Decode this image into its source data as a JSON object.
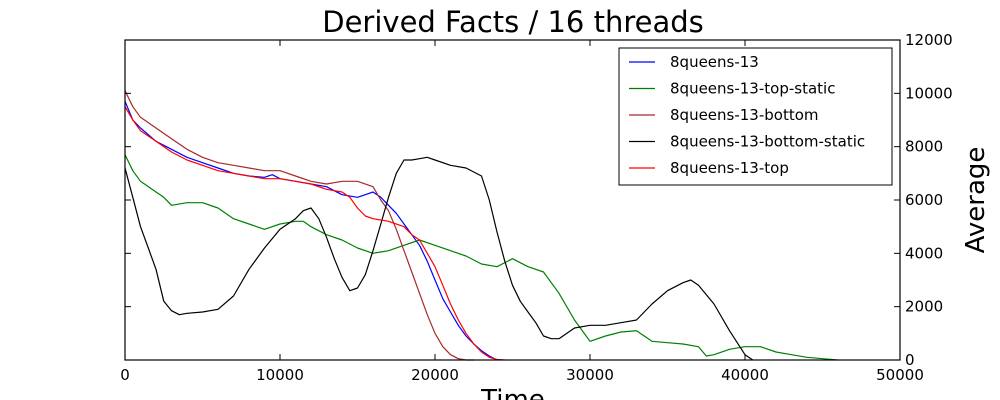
{
  "chart_data": {
    "type": "line",
    "title": "Derived Facts / 16 threads",
    "xlabel": "Time",
    "ylabel": "Average",
    "xlim": [
      0,
      50000
    ],
    "ylim": [
      0,
      12000
    ],
    "xticks": [
      0,
      10000,
      20000,
      30000,
      40000,
      50000
    ],
    "yticks": [
      0,
      2000,
      4000,
      6000,
      8000,
      10000,
      12000
    ],
    "y_axis_side": "right",
    "grid": false,
    "legend_position": "top-right",
    "series": [
      {
        "name": "8queens-13",
        "color": "#0000ff",
        "x": [
          0,
          500,
          1000,
          2000,
          3000,
          4000,
          5000,
          6000,
          7000,
          8000,
          9000,
          9500,
          10000,
          11000,
          12000,
          13000,
          14000,
          15000,
          15500,
          16000,
          16500,
          17000,
          17500,
          18000,
          18500,
          19000,
          19500,
          20000,
          20500,
          21000,
          21500,
          22000,
          22500,
          23000,
          23500,
          24000
        ],
        "y": [
          9700,
          9000,
          8700,
          8200,
          7900,
          7600,
          7400,
          7200,
          7000,
          6900,
          6850,
          6950,
          6800,
          6700,
          6600,
          6500,
          6200,
          6100,
          6200,
          6300,
          6100,
          5800,
          5500,
          5100,
          4700,
          4300,
          3700,
          3000,
          2300,
          1800,
          1300,
          900,
          600,
          350,
          150,
          0
        ]
      },
      {
        "name": "8queens-13-top-static",
        "color": "#008000",
        "x": [
          0,
          500,
          1000,
          2000,
          2500,
          3000,
          4000,
          5000,
          6000,
          7000,
          8000,
          9000,
          10000,
          11000,
          11500,
          12000,
          13000,
          14000,
          15000,
          16000,
          17000,
          18000,
          19000,
          20000,
          21000,
          22000,
          23000,
          24000,
          25000,
          26000,
          27000,
          28000,
          29000,
          30000,
          31000,
          32000,
          33000,
          34000,
          35000,
          36000,
          37000,
          37500,
          38000,
          39000,
          40000,
          41000,
          42000,
          43000,
          44000,
          45000,
          46000
        ],
        "y": [
          7700,
          7100,
          6700,
          6300,
          6100,
          5800,
          5900,
          5900,
          5700,
          5300,
          5100,
          4900,
          5100,
          5200,
          5200,
          5000,
          4700,
          4500,
          4200,
          4000,
          4100,
          4300,
          4500,
          4300,
          4100,
          3900,
          3600,
          3500,
          3800,
          3500,
          3300,
          2500,
          1500,
          700,
          900,
          1050,
          1100,
          700,
          650,
          600,
          500,
          150,
          200,
          400,
          500,
          500,
          300,
          200,
          100,
          50,
          0
        ]
      },
      {
        "name": "8queens-13-bottom",
        "color": "#a52a2a",
        "x": [
          0,
          500,
          1000,
          2000,
          3000,
          4000,
          5000,
          6000,
          7000,
          8000,
          9000,
          10000,
          11000,
          12000,
          13000,
          14000,
          15000,
          16000,
          16500,
          17000,
          17500,
          18000,
          18500,
          19000,
          19500,
          20000,
          20500,
          21000,
          21500,
          22000,
          22500
        ],
        "y": [
          10100,
          9500,
          9100,
          8700,
          8300,
          7900,
          7600,
          7400,
          7300,
          7200,
          7100,
          7100,
          6900,
          6700,
          6600,
          6700,
          6700,
          6500,
          6000,
          5600,
          4900,
          4100,
          3300,
          2500,
          1700,
          1000,
          500,
          200,
          50,
          0,
          0
        ]
      },
      {
        "name": "8queens-13-bottom-static",
        "color": "#000000",
        "x": [
          0,
          500,
          1000,
          1500,
          2000,
          2500,
          3000,
          3500,
          4000,
          5000,
          6000,
          7000,
          8000,
          9000,
          10000,
          11000,
          11500,
          12000,
          12500,
          13000,
          13500,
          14000,
          14500,
          15000,
          15500,
          16000,
          16500,
          17000,
          17500,
          18000,
          18500,
          19000,
          19500,
          20000,
          21000,
          22000,
          23000,
          23500,
          24000,
          24500,
          25000,
          25500,
          26000,
          26500,
          27000,
          27500,
          28000,
          29000,
          30000,
          31000,
          32000,
          33000,
          34000,
          35000,
          36000,
          36500,
          37000,
          38000,
          39000,
          40000,
          40500
        ],
        "y": [
          7200,
          6100,
          5000,
          4200,
          3400,
          2200,
          1850,
          1700,
          1750,
          1800,
          1900,
          2400,
          3400,
          4200,
          4900,
          5300,
          5600,
          5700,
          5300,
          4600,
          3800,
          3100,
          2600,
          2700,
          3200,
          4100,
          5100,
          6100,
          7000,
          7500,
          7500,
          7550,
          7600,
          7500,
          7300,
          7200,
          6900,
          6000,
          4800,
          3700,
          2800,
          2200,
          1800,
          1400,
          900,
          800,
          800,
          1200,
          1300,
          1300,
          1400,
          1500,
          2100,
          2600,
          2900,
          3000,
          2800,
          2100,
          1100,
          200,
          0
        ]
      },
      {
        "name": "8queens-13-top",
        "color": "#ff0000",
        "x": [
          0,
          500,
          1000,
          2000,
          3000,
          4000,
          5000,
          6000,
          7000,
          8000,
          9000,
          10000,
          11000,
          12000,
          13000,
          14000,
          14500,
          15000,
          15500,
          16000,
          17000,
          18000,
          18500,
          19000,
          19500,
          20000,
          20500,
          21000,
          21500,
          22000,
          22500,
          23000,
          23500,
          24000,
          24500
        ],
        "y": [
          9500,
          9000,
          8600,
          8200,
          7800,
          7500,
          7300,
          7100,
          7000,
          6900,
          6800,
          6800,
          6700,
          6600,
          6400,
          6300,
          6100,
          5700,
          5400,
          5300,
          5200,
          5000,
          4700,
          4500,
          4000,
          3500,
          2800,
          2100,
          1500,
          1000,
          600,
          300,
          100,
          20,
          0
        ]
      }
    ]
  }
}
